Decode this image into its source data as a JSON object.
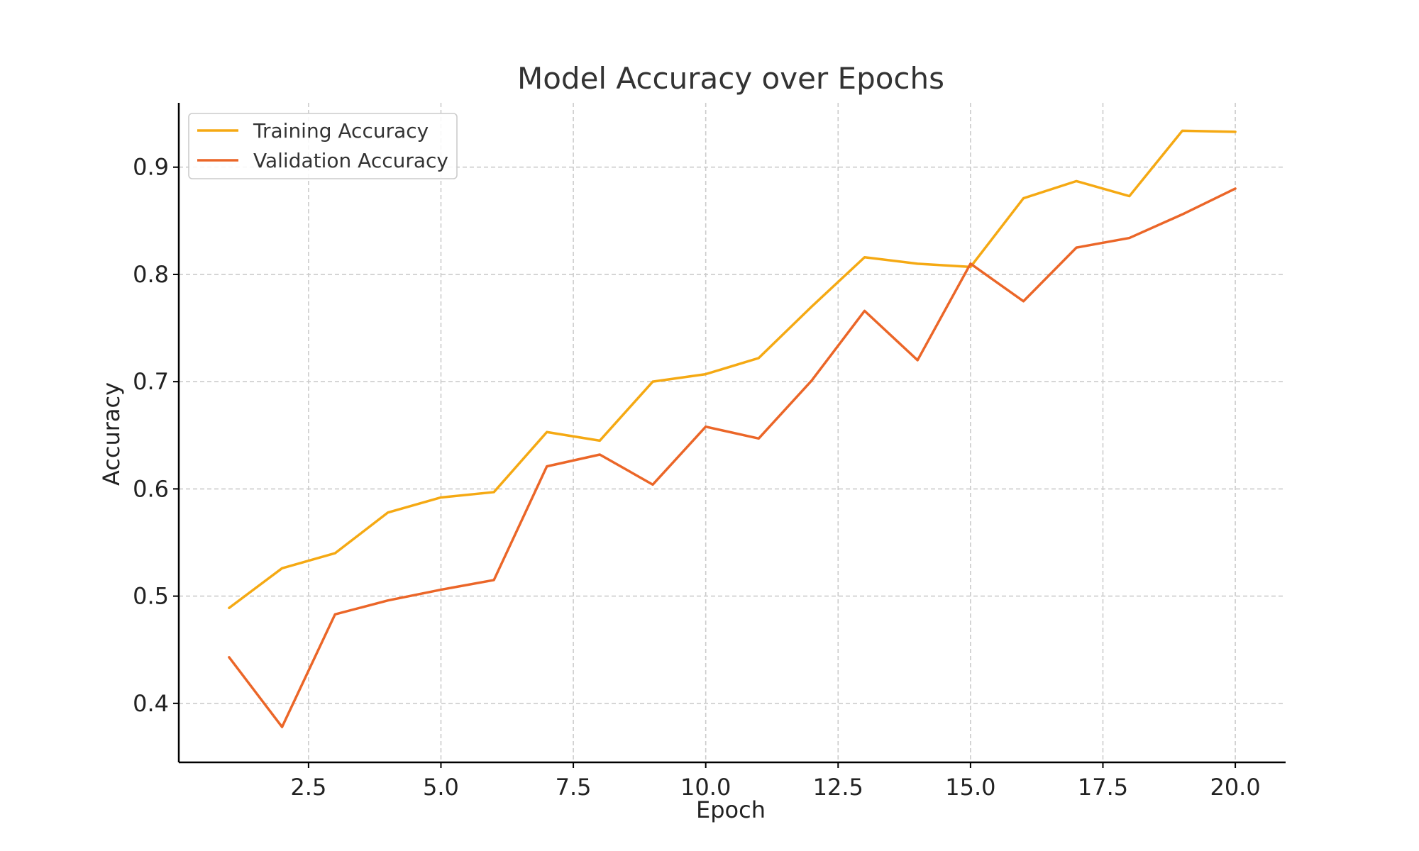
{
  "chart_data": {
    "type": "line",
    "title": "Model Accuracy over Epochs",
    "xlabel": "Epoch",
    "ylabel": "Accuracy",
    "xlim": [
      0.05,
      20.95
    ],
    "ylim": [
      0.345,
      0.96
    ],
    "grid": true,
    "legend_position": "top-left",
    "x_ticks": [
      2.5,
      5.0,
      7.5,
      10.0,
      12.5,
      15.0,
      17.5,
      20.0
    ],
    "x_tick_labels": [
      "2.5",
      "5.0",
      "7.5",
      "10.0",
      "12.5",
      "15.0",
      "17.5",
      "20.0"
    ],
    "y_ticks": [
      0.4,
      0.5,
      0.6,
      0.7,
      0.8,
      0.9
    ],
    "y_tick_labels": [
      "0.4",
      "0.5",
      "0.6",
      "0.7",
      "0.8",
      "0.9"
    ],
    "x": [
      1,
      2,
      3,
      4,
      5,
      6,
      7,
      8,
      9,
      10,
      11,
      12,
      13,
      14,
      15,
      16,
      17,
      18,
      19,
      20
    ],
    "series": [
      {
        "name": "Training Accuracy",
        "color": "#F5A913",
        "values": [
          0.489,
          0.526,
          0.54,
          0.578,
          0.592,
          0.597,
          0.653,
          0.645,
          0.7,
          0.707,
          0.722,
          0.77,
          0.816,
          0.81,
          0.807,
          0.871,
          0.887,
          0.873,
          0.934,
          0.933
        ]
      },
      {
        "name": "Validation Accuracy",
        "color": "#EB6628",
        "values": [
          0.443,
          0.378,
          0.483,
          0.496,
          0.506,
          0.515,
          0.621,
          0.632,
          0.604,
          0.658,
          0.647,
          0.701,
          0.766,
          0.72,
          0.81,
          0.775,
          0.825,
          0.834,
          0.856,
          0.88
        ]
      }
    ]
  }
}
